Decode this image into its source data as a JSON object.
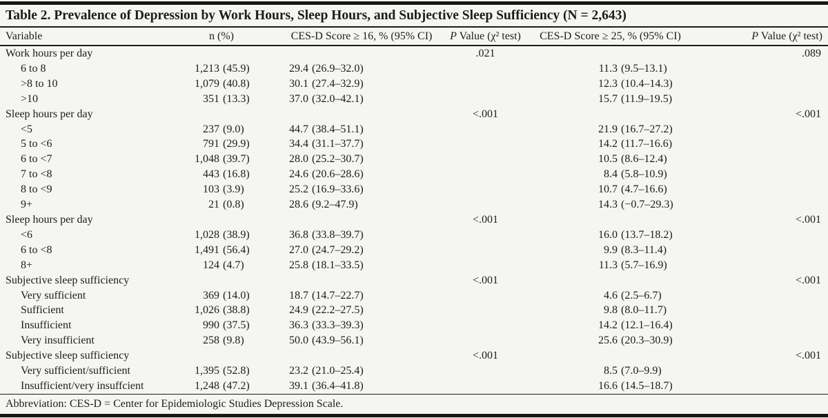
{
  "table": {
    "title": "Table 2. Prevalence of Depression by Work Hours, Sleep Hours, and Subjective Sleep Sufficiency (N = 2,643)",
    "columns": {
      "variable": "Variable",
      "n": "n (%)",
      "cesd16": "CES-D Score ≥ 16, % (95% CI)",
      "p_italic": "P",
      "p_rest": " Value (χ² test)",
      "cesd25": "CES-D Score ≥ 25, % (95% CI)"
    },
    "footnote": "Abbreviation: CES-D = Center for Epidemiologic Studies Depression Scale.",
    "sections": [
      {
        "label": "Work hours per day",
        "p16": ".021",
        "p25": ".089",
        "rows": [
          {
            "label": "6 to 8",
            "n": "1,213",
            "n_pct": "(45.9)",
            "v16": "29.4",
            "ci16": "(26.9–32.0)",
            "v25": "11.3",
            "ci25": "(9.5–13.1)"
          },
          {
            "label": ">8 to 10",
            "n": "1,079",
            "n_pct": "(40.8)",
            "v16": "30.1",
            "ci16": "(27.4–32.9)",
            "v25": "12.3",
            "ci25": "(10.4–14.3)"
          },
          {
            "label": ">10",
            "n": "351",
            "n_pct": "(13.3)",
            "v16": "37.0",
            "ci16": "(32.0–42.1)",
            "v25": "15.7",
            "ci25": "(11.9–19.5)"
          }
        ]
      },
      {
        "label": "Sleep hours per day",
        "p16": "<.001",
        "p25": "<.001",
        "rows": [
          {
            "label": "<5",
            "n": "237",
            "n_pct": "(9.0)",
            "v16": "44.7",
            "ci16": "(38.4–51.1)",
            "v25": "21.9",
            "ci25": "(16.7–27.2)"
          },
          {
            "label": "5 to <6",
            "n": "791",
            "n_pct": "(29.9)",
            "v16": "34.4",
            "ci16": "(31.1–37.7)",
            "v25": "14.2",
            "ci25": "(11.7–16.6)"
          },
          {
            "label": "6 to <7",
            "n": "1,048",
            "n_pct": "(39.7)",
            "v16": "28.0",
            "ci16": "(25.2–30.7)",
            "v25": "10.5",
            "ci25": "(8.6–12.4)"
          },
          {
            "label": "7 to <8",
            "n": "443",
            "n_pct": "(16.8)",
            "v16": "24.6",
            "ci16": "(20.6–28.6)",
            "v25": "8.4",
            "ci25": "(5.8–10.9)"
          },
          {
            "label": "8 to <9",
            "n": "103",
            "n_pct": "(3.9)",
            "v16": "25.2",
            "ci16": "(16.9–33.6)",
            "v25": "10.7",
            "ci25": "(4.7–16.6)"
          },
          {
            "label": "9+",
            "n": "21",
            "n_pct": "(0.8)",
            "v16": "28.6",
            "ci16": "(9.2–47.9)",
            "v25": "14.3",
            "ci25": "(−0.7–29.3)"
          }
        ]
      },
      {
        "label": "Sleep hours per day",
        "p16": "<.001",
        "p25": "<.001",
        "rows": [
          {
            "label": "<6",
            "n": "1,028",
            "n_pct": "(38.9)",
            "v16": "36.8",
            "ci16": "(33.8–39.7)",
            "v25": "16.0",
            "ci25": "(13.7–18.2)"
          },
          {
            "label": "6 to <8",
            "n": "1,491",
            "n_pct": "(56.4)",
            "v16": "27.0",
            "ci16": "(24.7–29.2)",
            "v25": "9.9",
            "ci25": "(8.3–11.4)"
          },
          {
            "label": "8+",
            "n": "124",
            "n_pct": "(4.7)",
            "v16": "25.8",
            "ci16": "(18.1–33.5)",
            "v25": "11.3",
            "ci25": "(5.7–16.9)"
          }
        ]
      },
      {
        "label": "Subjective sleep sufficiency",
        "p16": "<.001",
        "p25": "<.001",
        "rows": [
          {
            "label": "Very sufficient",
            "n": "369",
            "n_pct": "(14.0)",
            "v16": "18.7",
            "ci16": "(14.7–22.7)",
            "v25": "4.6",
            "ci25": "(2.5–6.7)"
          },
          {
            "label": "Sufficient",
            "n": "1,026",
            "n_pct": "(38.8)",
            "v16": "24.9",
            "ci16": "(22.2–27.5)",
            "v25": "9.8",
            "ci25": "(8.0–11.7)"
          },
          {
            "label": "Insufficient",
            "n": "990",
            "n_pct": "(37.5)",
            "v16": "36.3",
            "ci16": "(33.3–39.3)",
            "v25": "14.2",
            "ci25": "(12.1–16.4)"
          },
          {
            "label": "Very insufficient",
            "n": "258",
            "n_pct": "(9.8)",
            "v16": "50.0",
            "ci16": "(43.9–56.1)",
            "v25": "25.6",
            "ci25": "(20.3–30.9)"
          }
        ]
      },
      {
        "label": "Subjective sleep sufficiency",
        "p16": "<.001",
        "p25": "<.001",
        "rows": [
          {
            "label": "Very sufficient/sufficient",
            "n": "1,395",
            "n_pct": "(52.8)",
            "v16": "23.2",
            "ci16": "(21.0–25.4)",
            "v25": "8.5",
            "ci25": "(7.0–9.9)"
          },
          {
            "label": "Insufficient/very insuffcient",
            "n": "1,248",
            "n_pct": "(47.2)",
            "v16": "39.1",
            "ci16": "(36.4–41.8)",
            "v25": "16.6",
            "ci25": "(14.5–18.7)"
          }
        ]
      }
    ]
  },
  "colors": {
    "text": "#1c1c1c",
    "rule": "#161616",
    "background": "#f5f5f2"
  }
}
